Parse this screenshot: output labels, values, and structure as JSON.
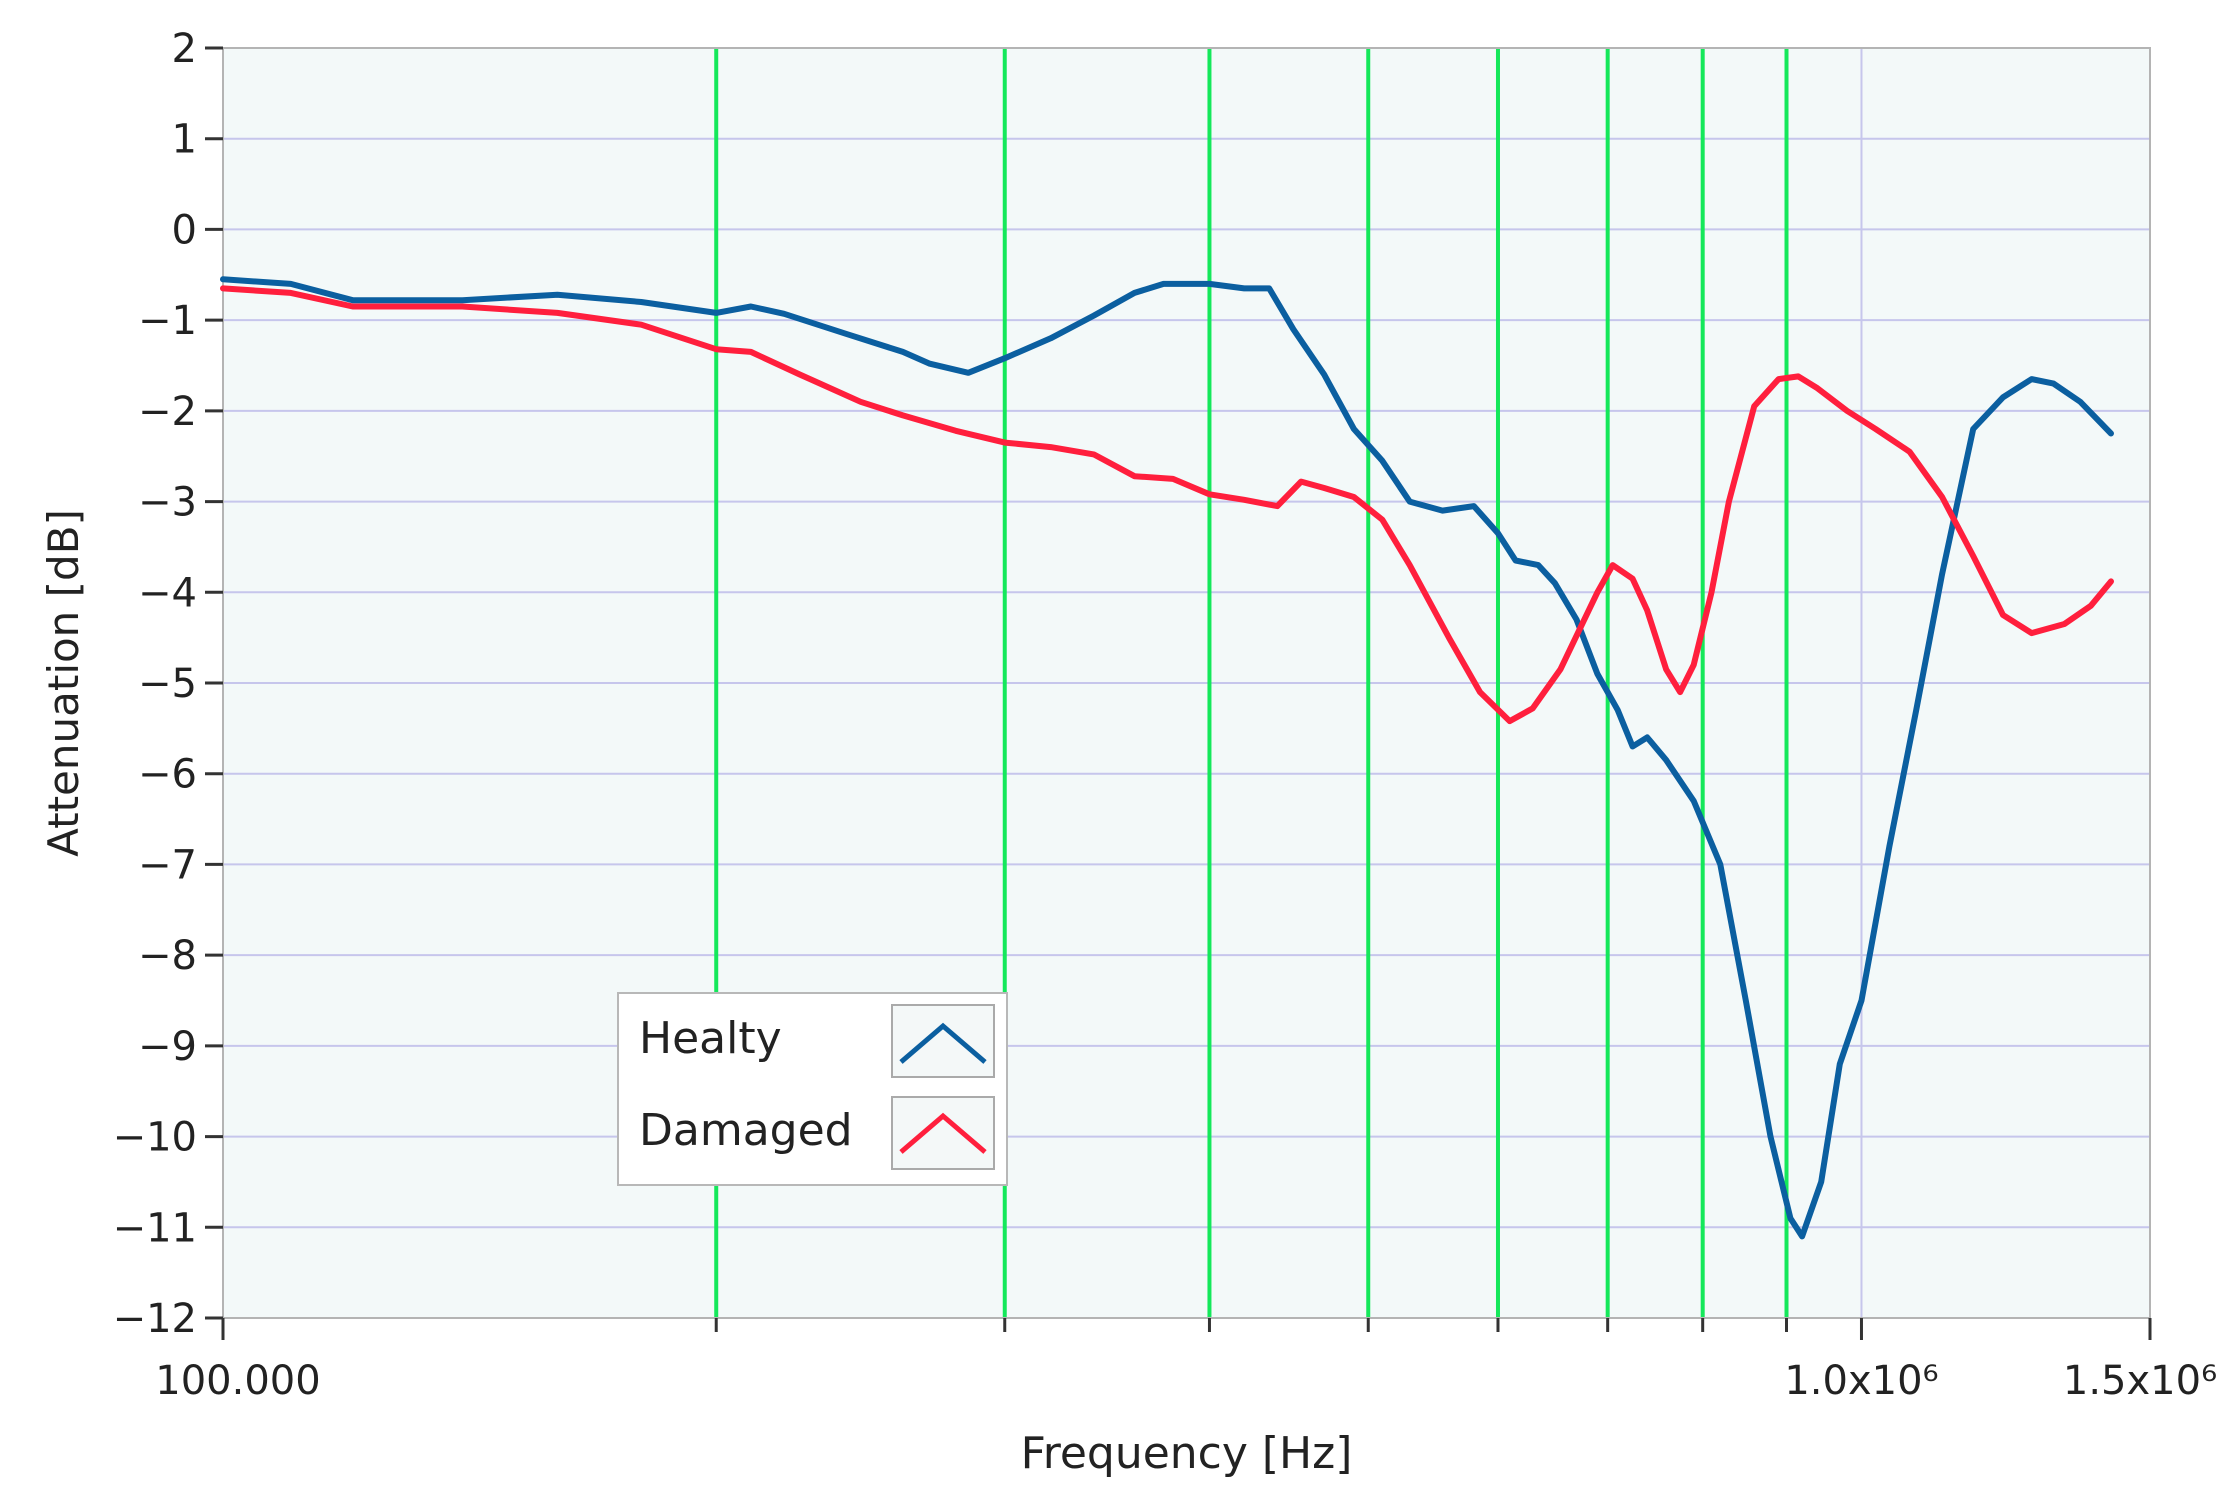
{
  "chart_data": {
    "type": "line",
    "xlabel": "Frequency [Hz]",
    "ylabel": "Attenuation [dB]",
    "x_scale": "log",
    "xlim": [
      100000,
      1500000
    ],
    "ylim": [
      -12,
      2
    ],
    "x_tick_labels": [
      {
        "value": 100000,
        "label": "100.000"
      },
      {
        "value": 1000000,
        "label": "1.0x10⁶"
      },
      {
        "value": 1500000,
        "label": "1.5x10⁶"
      }
    ],
    "x_minor_ticks": [
      200000,
      300000,
      400000,
      500000,
      600000,
      700000,
      800000,
      900000
    ],
    "y_ticks": [
      2,
      1,
      0,
      -1,
      -2,
      -3,
      -4,
      -5,
      -6,
      -7,
      -8,
      -9,
      -10,
      -11,
      -12
    ],
    "y_tick_labels": [
      "2",
      "1",
      "0",
      "−1",
      "−2",
      "−3",
      "−4",
      "−5",
      "−6",
      "−7",
      "−8",
      "−9",
      "−10",
      "−11",
      "−12"
    ],
    "vertical_markers": [
      200000,
      300000,
      400000,
      500000,
      600000,
      700000,
      800000,
      900000
    ],
    "grid": true,
    "legend": "bottom-left",
    "colors": {
      "Healty": "#0b5fa0",
      "Damaged": "#ff1f3d",
      "marker": "#14e85a",
      "grid": "#c6c6ec",
      "plot_bg": "#f3f9f9"
    },
    "series": [
      {
        "name": "Healty",
        "points": [
          [
            100000,
            -0.55
          ],
          [
            110000,
            -0.6
          ],
          [
            120000,
            -0.78
          ],
          [
            140000,
            -0.78
          ],
          [
            160000,
            -0.72
          ],
          [
            180000,
            -0.8
          ],
          [
            200000,
            -0.92
          ],
          [
            210000,
            -0.85
          ],
          [
            220000,
            -0.93
          ],
          [
            240000,
            -1.15
          ],
          [
            260000,
            -1.35
          ],
          [
            270000,
            -1.48
          ],
          [
            285000,
            -1.58
          ],
          [
            300000,
            -1.42
          ],
          [
            320000,
            -1.2
          ],
          [
            340000,
            -0.95
          ],
          [
            360000,
            -0.7
          ],
          [
            375000,
            -0.6
          ],
          [
            400000,
            -0.6
          ],
          [
            420000,
            -0.65
          ],
          [
            435000,
            -0.65
          ],
          [
            450000,
            -1.1
          ],
          [
            470000,
            -1.6
          ],
          [
            490000,
            -2.2
          ],
          [
            510000,
            -2.55
          ],
          [
            530000,
            -3.0
          ],
          [
            555000,
            -3.1
          ],
          [
            580000,
            -3.05
          ],
          [
            600000,
            -3.35
          ],
          [
            615000,
            -3.65
          ],
          [
            635000,
            -3.7
          ],
          [
            650000,
            -3.9
          ],
          [
            670000,
            -4.3
          ],
          [
            690000,
            -4.9
          ],
          [
            710000,
            -5.3
          ],
          [
            725000,
            -5.7
          ],
          [
            740000,
            -5.6
          ],
          [
            760000,
            -5.85
          ],
          [
            790000,
            -6.3
          ],
          [
            820000,
            -7.0
          ],
          [
            850000,
            -8.5
          ],
          [
            880000,
            -10.0
          ],
          [
            905000,
            -10.9
          ],
          [
            920000,
            -11.1
          ],
          [
            945000,
            -10.5
          ],
          [
            970000,
            -9.2
          ],
          [
            1000000,
            -8.5
          ],
          [
            1040000,
            -6.8
          ],
          [
            1080000,
            -5.3
          ],
          [
            1120000,
            -3.8
          ],
          [
            1170000,
            -2.2
          ],
          [
            1220000,
            -1.85
          ],
          [
            1270000,
            -1.65
          ],
          [
            1310000,
            -1.7
          ],
          [
            1360000,
            -1.9
          ],
          [
            1420000,
            -2.25
          ]
        ]
      },
      {
        "name": "Damaged",
        "points": [
          [
            100000,
            -0.65
          ],
          [
            110000,
            -0.7
          ],
          [
            120000,
            -0.85
          ],
          [
            140000,
            -0.85
          ],
          [
            160000,
            -0.92
          ],
          [
            180000,
            -1.05
          ],
          [
            200000,
            -1.32
          ],
          [
            210000,
            -1.35
          ],
          [
            225000,
            -1.6
          ],
          [
            245000,
            -1.9
          ],
          [
            260000,
            -2.05
          ],
          [
            280000,
            -2.22
          ],
          [
            300000,
            -2.35
          ],
          [
            320000,
            -2.4
          ],
          [
            340000,
            -2.48
          ],
          [
            360000,
            -2.72
          ],
          [
            380000,
            -2.75
          ],
          [
            400000,
            -2.92
          ],
          [
            420000,
            -2.98
          ],
          [
            440000,
            -3.05
          ],
          [
            455000,
            -2.78
          ],
          [
            470000,
            -2.85
          ],
          [
            490000,
            -2.95
          ],
          [
            510000,
            -3.2
          ],
          [
            530000,
            -3.7
          ],
          [
            560000,
            -4.5
          ],
          [
            585000,
            -5.1
          ],
          [
            610000,
            -5.42
          ],
          [
            630000,
            -5.28
          ],
          [
            655000,
            -4.85
          ],
          [
            690000,
            -4.0
          ],
          [
            705000,
            -3.7
          ],
          [
            725000,
            -3.85
          ],
          [
            740000,
            -4.2
          ],
          [
            760000,
            -4.85
          ],
          [
            775000,
            -5.1
          ],
          [
            790000,
            -4.8
          ],
          [
            810000,
            -4.0
          ],
          [
            830000,
            -3.0
          ],
          [
            860000,
            -1.95
          ],
          [
            890000,
            -1.65
          ],
          [
            915000,
            -1.62
          ],
          [
            940000,
            -1.75
          ],
          [
            980000,
            -2.0
          ],
          [
            1020000,
            -2.2
          ],
          [
            1070000,
            -2.45
          ],
          [
            1120000,
            -2.95
          ],
          [
            1170000,
            -3.6
          ],
          [
            1220000,
            -4.25
          ],
          [
            1270000,
            -4.45
          ],
          [
            1330000,
            -4.35
          ],
          [
            1380000,
            -4.15
          ],
          [
            1420000,
            -3.88
          ]
        ]
      }
    ]
  }
}
